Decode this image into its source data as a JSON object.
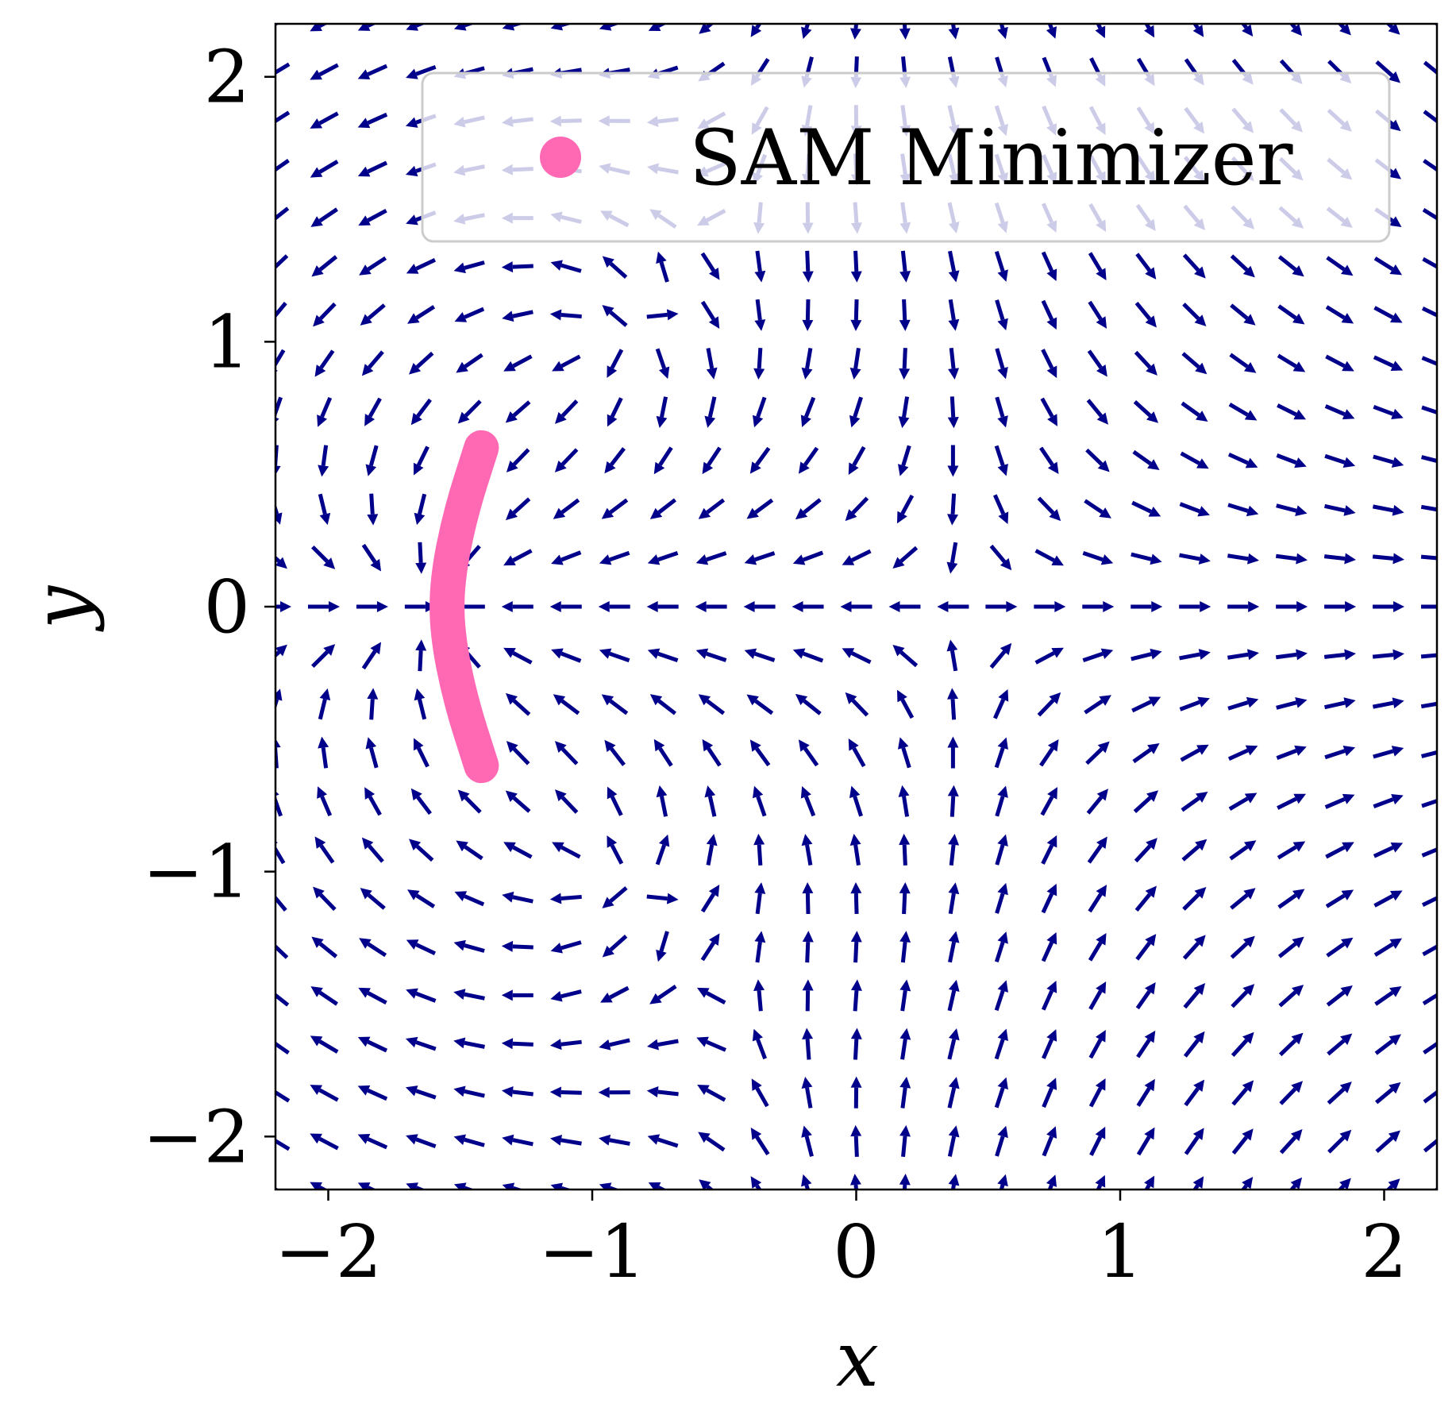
{
  "chart_data": {
    "type": "quiver",
    "title": "",
    "xlabel": "x",
    "ylabel": "y",
    "xlim": [
      -2.2,
      2.2
    ],
    "ylim": [
      -2.2,
      2.2
    ],
    "xticks": [
      -2,
      -1,
      0,
      1,
      2
    ],
    "yticks": [
      -2,
      -1,
      0,
      1,
      2
    ],
    "xtick_labels": [
      "−2",
      "−1",
      "0",
      "1",
      "2"
    ],
    "ytick_labels": [
      "−2",
      "−1",
      "0",
      "1",
      "2"
    ],
    "grid": false,
    "legend": {
      "placement": "top-right",
      "entries": [
        "SAM Minimizer"
      ]
    },
    "series": [
      {
        "name": "SAM Minimizer",
        "kind": "curve",
        "color": "#ff69b4",
        "points": [
          [
            -1.42,
            0.6
          ],
          [
            -1.5,
            0.35
          ],
          [
            -1.55,
            0.1
          ],
          [
            -1.55,
            -0.1
          ],
          [
            -1.5,
            -0.35
          ],
          [
            -1.42,
            -0.6
          ]
        ]
      }
    ],
    "vector_field": {
      "color": "#00008b",
      "grid_min": -2.2,
      "grid_max": 2.2,
      "grid_n": 25,
      "saddle": [
        0.4,
        0.0
      ],
      "sources": [
        [
          -0.95,
          0.95
        ],
        [
          -0.95,
          -0.95
        ]
      ],
      "sinks": [
        [
          -1.55,
          0.0
        ]
      ]
    }
  }
}
